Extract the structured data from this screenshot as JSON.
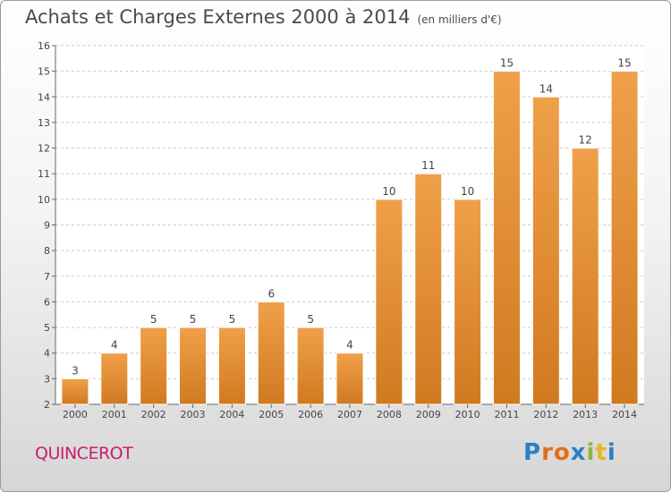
{
  "chart_data": {
    "type": "bar",
    "title": "Achats et Charges Externes 2000 à 2014",
    "subtitle": "(en milliers d'€)",
    "categories": [
      "2000",
      "2001",
      "2002",
      "2003",
      "2004",
      "2005",
      "2006",
      "2007",
      "2008",
      "2009",
      "2010",
      "2011",
      "2012",
      "2013",
      "2014"
    ],
    "values": [
      3,
      4,
      5,
      5,
      5,
      6,
      5,
      4,
      10,
      11,
      10,
      15,
      14,
      12,
      15
    ],
    "ylim": [
      2,
      16
    ],
    "yticks": [
      2,
      3,
      4,
      5,
      6,
      7,
      8,
      9,
      10,
      11,
      12,
      13,
      14,
      15,
      16
    ],
    "grid": true,
    "bar_color": "#f0a04a",
    "bar_color_dark": "#d07a20"
  },
  "commune": "QUINCEROT",
  "logo": {
    "letters": [
      "P",
      "r",
      "o",
      "x",
      "i",
      "t",
      "i"
    ],
    "colors": [
      "#2b7fc4",
      "#e06e1f",
      "#e06e1f",
      "#2b7fc4",
      "#8bb83a",
      "#e6b821",
      "#2b7fc4"
    ]
  }
}
